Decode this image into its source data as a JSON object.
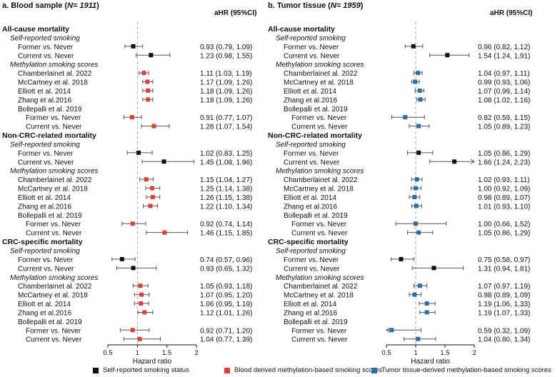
{
  "chart_data": [
    {
      "type": "forest",
      "panel_title": "a. Blood sample (",
      "panel_n": "N= 1911",
      "estimate_header": "aHR (95%CI)",
      "xlabel": "Hazard ratio",
      "xlim": [
        0.5,
        2
      ],
      "xticks": [
        "0.5",
        "1",
        "1.5",
        "2"
      ],
      "reference_line": 1,
      "rows": [
        {
          "kind": "section",
          "label": "All-cause mortality"
        },
        {
          "kind": "subheader",
          "label": "Self-reported smoking"
        },
        {
          "kind": "data",
          "label": "Former vs. Never",
          "group": "self",
          "hr": 0.93,
          "lo": 0.79,
          "hi": 1.09,
          "text": "0.93 (0.79, 1.09)"
        },
        {
          "kind": "data",
          "label": "Current vs. Never",
          "group": "self",
          "hr": 1.23,
          "lo": 0.98,
          "hi": 1.55,
          "text": "1.23 (0.98, 1.55)"
        },
        {
          "kind": "subheader",
          "label": "Methylation smoking scores"
        },
        {
          "kind": "data",
          "label": "Chamberlainet al. 2022",
          "group": "blood",
          "hr": 1.11,
          "lo": 1.03,
          "hi": 1.19,
          "text": "1.11 (1.03, 1.19)"
        },
        {
          "kind": "data",
          "label": "McCartney et al. 2018",
          "group": "blood",
          "hr": 1.17,
          "lo": 1.09,
          "hi": 1.26,
          "text": "1.17 (1.09, 1.26)"
        },
        {
          "kind": "data",
          "label": "Elliott et al. 2014",
          "group": "blood",
          "hr": 1.18,
          "lo": 1.09,
          "hi": 1.26,
          "text": "1.18 (1.09, 1.26)"
        },
        {
          "kind": "data",
          "label": "Zhang et al.2016",
          "group": "blood",
          "hr": 1.18,
          "lo": 1.09,
          "hi": 1.26,
          "text": "1.18 (1.09, 1.26)"
        },
        {
          "kind": "item",
          "label": "Bollepalli et al. 2019"
        },
        {
          "kind": "data",
          "label": "Former vs. Never",
          "group": "blood",
          "sub": true,
          "hr": 0.91,
          "lo": 0.77,
          "hi": 1.07,
          "text": "0.91 (0.77, 1.07)"
        },
        {
          "kind": "data",
          "label": "Current vs. Never",
          "group": "blood",
          "sub": true,
          "hr": 1.28,
          "lo": 1.07,
          "hi": 1.54,
          "text": "1.28 (1.07, 1.54)"
        },
        {
          "kind": "section",
          "label": "Non-CRC-related mortality"
        },
        {
          "kind": "subheader",
          "label": "Self-reported smoking"
        },
        {
          "kind": "data",
          "label": "Former vs. Never",
          "group": "self",
          "hr": 1.02,
          "lo": 0.83,
          "hi": 1.25,
          "text": "1.02 (0.83, 1.25)"
        },
        {
          "kind": "data",
          "label": "Current vs. Never",
          "group": "self",
          "hr": 1.45,
          "lo": 1.08,
          "hi": 1.96,
          "text": "1.45 (1.08, 1.96)"
        },
        {
          "kind": "subheader",
          "label": "Methylation smoking scores"
        },
        {
          "kind": "data",
          "label": "Chamberlainet al. 2022",
          "group": "blood",
          "hr": 1.15,
          "lo": 1.04,
          "hi": 1.27,
          "text": "1.15 (1.04, 1.27)"
        },
        {
          "kind": "data",
          "label": "McCartney et al. 2018",
          "group": "blood",
          "hr": 1.25,
          "lo": 1.14,
          "hi": 1.38,
          "text": "1.25 (1.14, 1.38)"
        },
        {
          "kind": "data",
          "label": "Elliott et al. 2014",
          "group": "blood",
          "hr": 1.26,
          "lo": 1.15,
          "hi": 1.38,
          "text": "1.26 (1.15, 1.38)"
        },
        {
          "kind": "data",
          "label": "Zhang et al.2016",
          "group": "blood",
          "hr": 1.22,
          "lo": 1.1,
          "hi": 1.34,
          "text": "1.22 (1.10, 1.34)"
        },
        {
          "kind": "item",
          "label": "Bollepalli et al. 2019"
        },
        {
          "kind": "data",
          "label": "Former vs. Never",
          "group": "blood",
          "sub": true,
          "hr": 0.92,
          "lo": 0.74,
          "hi": 1.14,
          "text": "0.92 (0.74, 1.14)"
        },
        {
          "kind": "data",
          "label": "Current vs. Never",
          "group": "blood",
          "sub": true,
          "hr": 1.46,
          "lo": 1.15,
          "hi": 1.85,
          "text": "1.46 (1.15, 1.85)"
        },
        {
          "kind": "section",
          "label": "CRC-specific mortality"
        },
        {
          "kind": "subheader",
          "label": "Self-reported smoking"
        },
        {
          "kind": "data",
          "label": "Former vs. Never",
          "group": "self",
          "hr": 0.74,
          "lo": 0.57,
          "hi": 0.96,
          "text": "0.74 (0.57, 0.96)"
        },
        {
          "kind": "data",
          "label": "Current vs. Never",
          "group": "self",
          "hr": 0.93,
          "lo": 0.65,
          "hi": 1.32,
          "text": "0.93 (0.65, 1.32)"
        },
        {
          "kind": "subheader",
          "label": "Methylation smoking scores"
        },
        {
          "kind": "data",
          "label": "Chamberlainet al. 2022",
          "group": "blood",
          "hr": 1.05,
          "lo": 0.93,
          "hi": 1.18,
          "text": "1.05 (0.93, 1.18)"
        },
        {
          "kind": "data",
          "label": "McCartney et al. 2018",
          "group": "blood",
          "hr": 1.07,
          "lo": 0.95,
          "hi": 1.2,
          "text": "1.07 (0.95, 1.20)"
        },
        {
          "kind": "data",
          "label": "Elliott et al. 2014",
          "group": "blood",
          "hr": 1.06,
          "lo": 0.95,
          "hi": 1.19,
          "text": "1.06 (0.95, 1.19)"
        },
        {
          "kind": "data",
          "label": "Zhang et al.2016",
          "group": "blood",
          "hr": 1.12,
          "lo": 1.01,
          "hi": 1.26,
          "text": "1.12 (1.01, 1.26)"
        },
        {
          "kind": "item",
          "label": "Bollepalli et al. 2019"
        },
        {
          "kind": "data",
          "label": "Former vs. Never",
          "group": "blood",
          "sub": true,
          "hr": 0.92,
          "lo": 0.71,
          "hi": 1.2,
          "text": "0.92 (0.71, 1.20)"
        },
        {
          "kind": "data",
          "label": "Current vs. Never",
          "group": "blood",
          "sub": true,
          "hr": 1.04,
          "lo": 0.77,
          "hi": 1.39,
          "text": "1.04 (0.77, 1.39)"
        }
      ]
    },
    {
      "type": "forest",
      "panel_title": "b. Tumor tissue (",
      "panel_n": "N= 1959",
      "estimate_header": "aHR (95%CI)",
      "xlabel": "Hazard ratio",
      "xlim": [
        0.5,
        2
      ],
      "xticks": [
        "0.5",
        "1",
        "1.5",
        "2"
      ],
      "reference_line": 1,
      "rows": [
        {
          "kind": "section",
          "label": "All-cause mortality"
        },
        {
          "kind": "subheader",
          "label": "Self-reported smoking"
        },
        {
          "kind": "data",
          "label": "Former vs. Never",
          "group": "self",
          "hr": 0.96,
          "lo": 0.82,
          "hi": 1.12,
          "text": "0.96 (0.82, 1.12)"
        },
        {
          "kind": "data",
          "label": "Current vs. Never",
          "group": "self",
          "hr": 1.54,
          "lo": 1.24,
          "hi": 1.91,
          "text": "1.54 (1.24, 1.91)"
        },
        {
          "kind": "subheader",
          "label": "Methylation smoking scores"
        },
        {
          "kind": "data",
          "label": "Chamberlainet al. 2022",
          "group": "tumor",
          "hr": 1.04,
          "lo": 0.97,
          "hi": 1.11,
          "text": "1.04 (0.97, 1.11)"
        },
        {
          "kind": "data",
          "label": "McCartney et al. 2018",
          "group": "tumor",
          "hr": 0.99,
          "lo": 0.93,
          "hi": 1.06,
          "text": "0.99 (0.93, 1.06)"
        },
        {
          "kind": "data",
          "label": "Elliott et al. 2014",
          "group": "tumor",
          "hr": 1.07,
          "lo": 0.99,
          "hi": 1.14,
          "text": "1.07 (0.99, 1.14)"
        },
        {
          "kind": "data",
          "label": "Zhang et al.2016",
          "group": "tumor",
          "hr": 1.08,
          "lo": 1.02,
          "hi": 1.16,
          "text": "1.08 (1.02, 1.16)"
        },
        {
          "kind": "item",
          "label": "Bollepalli et al. 2019"
        },
        {
          "kind": "data",
          "label": "Former vs. Never",
          "group": "tumor",
          "sub": true,
          "hr": 0.82,
          "lo": 0.59,
          "hi": 1.15,
          "text": "0.82 (0.59, 1.15)"
        },
        {
          "kind": "data",
          "label": "Current vs. Never",
          "group": "tumor",
          "sub": true,
          "hr": 1.05,
          "lo": 0.89,
          "hi": 1.23,
          "text": "1.05 (0.89, 1.23)"
        },
        {
          "kind": "section",
          "label": "Non-CRC-related mortality"
        },
        {
          "kind": "subheader",
          "label": "Self-reported smoking"
        },
        {
          "kind": "data",
          "label": "Former vs. Never",
          "group": "self",
          "hr": 1.05,
          "lo": 0.86,
          "hi": 1.29,
          "text": "1.05 (0.86, 1.29)"
        },
        {
          "kind": "data",
          "label": "Current vs. Never",
          "group": "self",
          "hr": 1.66,
          "lo": 1.24,
          "hi": 2.23,
          "text": "1.66 (1.24, 2.23)"
        },
        {
          "kind": "subheader",
          "label": "Methylation smoking scores"
        },
        {
          "kind": "data",
          "label": "Chamberlainet al. 2022",
          "group": "tumor",
          "hr": 1.02,
          "lo": 0.93,
          "hi": 1.11,
          "text": "1.02 (0.93, 1.11)"
        },
        {
          "kind": "data",
          "label": "McCartney et al. 2018",
          "group": "tumor",
          "hr": 1.0,
          "lo": 0.92,
          "hi": 1.09,
          "text": "1.00 (0.92, 1.09)"
        },
        {
          "kind": "data",
          "label": "Elliott et al. 2014",
          "group": "tumor",
          "hr": 0.98,
          "lo": 0.89,
          "hi": 1.07,
          "text": "0.98 (0.89, 1.07)"
        },
        {
          "kind": "data",
          "label": "Zhang et al.2016",
          "group": "tumor",
          "hr": 1.01,
          "lo": 0.93,
          "hi": 1.1,
          "text": "1.01 (0.93, 1.10)"
        },
        {
          "kind": "item",
          "label": "Bollepalli et al. 2019"
        },
        {
          "kind": "data",
          "label": "Former vs. Never",
          "group": "tumor",
          "sub": true,
          "hr": 1.0,
          "lo": 0.66,
          "hi": 1.52,
          "text": "1.00 (0.66, 1.52)"
        },
        {
          "kind": "data",
          "label": "Current vs. Never",
          "group": "tumor",
          "sub": true,
          "hr": 1.05,
          "lo": 0.86,
          "hi": 1.29,
          "text": "1.05 (0.86, 1.29)"
        },
        {
          "kind": "section",
          "label": "CRC-specific mortality"
        },
        {
          "kind": "subheader",
          "label": "Self-reported smoking"
        },
        {
          "kind": "data",
          "label": "Former vs. Never",
          "group": "self",
          "hr": 0.75,
          "lo": 0.58,
          "hi": 0.97,
          "text": "0.75 (0.58, 0.97)"
        },
        {
          "kind": "data",
          "label": "Current vs. Never",
          "group": "self",
          "hr": 1.31,
          "lo": 0.94,
          "hi": 1.81,
          "text": "1.31 (0.94, 1.81)"
        },
        {
          "kind": "subheader",
          "label": "Methylation smoking scores"
        },
        {
          "kind": "data",
          "label": "Chamberlainet al. 2022",
          "group": "tumor",
          "hr": 1.07,
          "lo": 0.97,
          "hi": 1.19,
          "text": "1.07 (0.97, 1.19)"
        },
        {
          "kind": "data",
          "label": "McCartney et al. 2018",
          "group": "tumor",
          "hr": 0.98,
          "lo": 0.89,
          "hi": 1.09,
          "text": "0.98 (0.89, 1.09)"
        },
        {
          "kind": "data",
          "label": "Elliott et al. 2014",
          "group": "tumor",
          "hr": 1.19,
          "lo": 1.06,
          "hi": 1.33,
          "text": "1.19 (1.06, 1.33)"
        },
        {
          "kind": "data",
          "label": "Zhang et al.2016",
          "group": "tumor",
          "hr": 1.19,
          "lo": 1.07,
          "hi": 1.33,
          "text": "1.19 (1.07, 1.33)"
        },
        {
          "kind": "item",
          "label": "Bollepalli et al. 2019"
        },
        {
          "kind": "data",
          "label": "Former vs. Never",
          "group": "tumor",
          "sub": true,
          "hr": 0.59,
          "lo": 0.32,
          "hi": 1.09,
          "text": "0.59 (0.32, 1.09)"
        },
        {
          "kind": "data",
          "label": "Current vs. Never",
          "group": "tumor",
          "sub": true,
          "hr": 1.04,
          "lo": 0.8,
          "hi": 1.34,
          "text": "1.04 (0.80, 1.34)"
        }
      ]
    }
  ],
  "legend": [
    {
      "label": "Self-reported smoking status",
      "group": "self"
    },
    {
      "label": "Blood derived methylation-based smoking scores",
      "group": "blood"
    },
    {
      "label": "Tumor tissue-derived methylation-based smoking scores",
      "group": "tumor"
    }
  ],
  "colors": {
    "self": "#111111",
    "blood": "#e0403a",
    "tumor": "#2e6ea6",
    "ci": "#555555",
    "refline": "#aaaaaa"
  }
}
